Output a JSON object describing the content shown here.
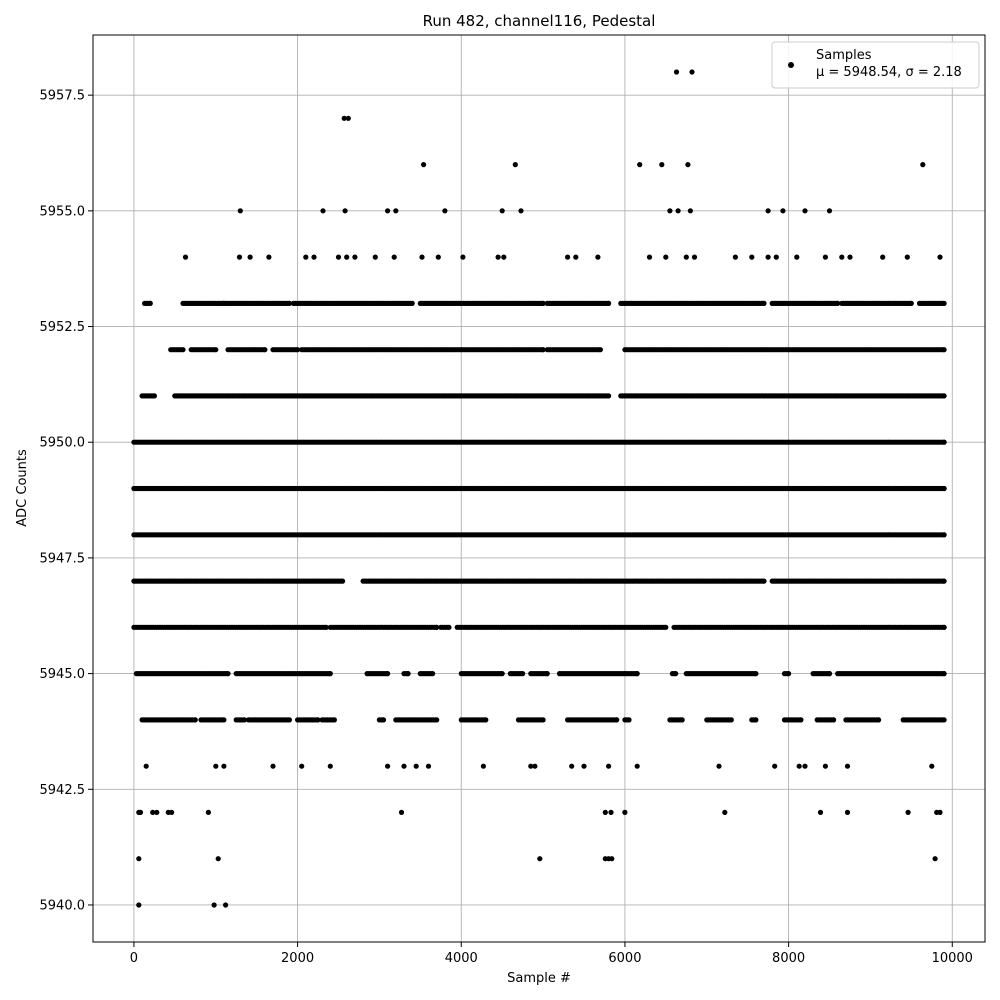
{
  "chart_data": {
    "type": "scatter",
    "title": "Run 482, channel116, Pedestal",
    "xlabel": "Sample #",
    "ylabel": "ADC Counts",
    "xlim": [
      -500,
      10400
    ],
    "ylim": [
      5939.2,
      5958.8
    ],
    "xticks": [
      0,
      2000,
      4000,
      6000,
      8000,
      10000
    ],
    "xtick_labels": [
      "0",
      "2000",
      "4000",
      "6000",
      "8000",
      "10000"
    ],
    "yticks": [
      5940.0,
      5942.5,
      5945.0,
      5947.5,
      5950.0,
      5952.5,
      5955.0,
      5957.5
    ],
    "ytick_labels": [
      "5940.0",
      "5942.5",
      "5945.0",
      "5947.5",
      "5950.0",
      "5952.5",
      "5955.0",
      "5957.5"
    ],
    "grid": true,
    "legend_position": "top-right",
    "series": [
      {
        "name": "Samples",
        "stats_label": "μ = 5948.54, σ = 2.18",
        "color": "#000000",
        "marker": "circle",
        "n_samples": 10000,
        "sample_range": [
          0,
          9900
        ],
        "points": [
          [
            60,
            5940
          ],
          [
            980,
            5940
          ],
          [
            1120,
            5940
          ],
          [
            60,
            5941
          ],
          [
            1030,
            5941
          ],
          [
            4960,
            5941
          ],
          [
            5760,
            5941
          ],
          [
            5800,
            5941
          ],
          [
            5840,
            5941
          ],
          [
            9790,
            5941
          ],
          [
            60,
            5942
          ],
          [
            80,
            5942
          ],
          [
            230,
            5942
          ],
          [
            280,
            5942
          ],
          [
            420,
            5942
          ],
          [
            460,
            5942
          ],
          [
            910,
            5942
          ],
          [
            3270,
            5942
          ],
          [
            5760,
            5942
          ],
          [
            5830,
            5942
          ],
          [
            6000,
            5942
          ],
          [
            7220,
            5942
          ],
          [
            8390,
            5942
          ],
          [
            8720,
            5942
          ],
          [
            9460,
            5942
          ],
          [
            9810,
            5942
          ],
          [
            9850,
            5942
          ],
          [
            150,
            5943
          ],
          [
            1000,
            5943
          ],
          [
            1100,
            5943
          ],
          [
            1700,
            5943
          ],
          [
            2050,
            5943
          ],
          [
            2400,
            5943
          ],
          [
            3100,
            5943
          ],
          [
            3300,
            5943
          ],
          [
            3450,
            5943
          ],
          [
            3600,
            5943
          ],
          [
            4270,
            5943
          ],
          [
            4850,
            5943
          ],
          [
            4900,
            5943
          ],
          [
            5350,
            5943
          ],
          [
            5500,
            5943
          ],
          [
            5800,
            5943
          ],
          [
            6150,
            5943
          ],
          [
            7150,
            5943
          ],
          [
            7830,
            5943
          ],
          [
            8130,
            5943
          ],
          [
            8200,
            5943
          ],
          [
            8450,
            5943
          ],
          [
            8720,
            5943
          ],
          [
            9750,
            5943
          ],
          [
            630,
            5954
          ],
          [
            1290,
            5954
          ],
          [
            1420,
            5954
          ],
          [
            1650,
            5954
          ],
          [
            2100,
            5954
          ],
          [
            2200,
            5954
          ],
          [
            2500,
            5954
          ],
          [
            2600,
            5954
          ],
          [
            2700,
            5954
          ],
          [
            2950,
            5954
          ],
          [
            3180,
            5954
          ],
          [
            3520,
            5954
          ],
          [
            3720,
            5954
          ],
          [
            4020,
            5954
          ],
          [
            4450,
            5954
          ],
          [
            4520,
            5954
          ],
          [
            5300,
            5954
          ],
          [
            5400,
            5954
          ],
          [
            5670,
            5954
          ],
          [
            6300,
            5954
          ],
          [
            6500,
            5954
          ],
          [
            6750,
            5954
          ],
          [
            6850,
            5954
          ],
          [
            7350,
            5954
          ],
          [
            7550,
            5954
          ],
          [
            7750,
            5954
          ],
          [
            7850,
            5954
          ],
          [
            8100,
            5954
          ],
          [
            8450,
            5954
          ],
          [
            8650,
            5954
          ],
          [
            8750,
            5954
          ],
          [
            9150,
            5954
          ],
          [
            9450,
            5954
          ],
          [
            9850,
            5954
          ],
          [
            1300,
            5955
          ],
          [
            2310,
            5955
          ],
          [
            2580,
            5955
          ],
          [
            3100,
            5955
          ],
          [
            3200,
            5955
          ],
          [
            3800,
            5955
          ],
          [
            4500,
            5955
          ],
          [
            4730,
            5955
          ],
          [
            6550,
            5955
          ],
          [
            6650,
            5955
          ],
          [
            6800,
            5955
          ],
          [
            7750,
            5955
          ],
          [
            7930,
            5955
          ],
          [
            8200,
            5955
          ],
          [
            8500,
            5955
          ],
          [
            3540,
            5956
          ],
          [
            4660,
            5956
          ],
          [
            6180,
            5956
          ],
          [
            6450,
            5956
          ],
          [
            6770,
            5956
          ],
          [
            9640,
            5956
          ],
          [
            2570,
            5957
          ],
          [
            2620,
            5957
          ],
          [
            6630,
            5958
          ],
          [
            6820,
            5958
          ]
        ],
        "dense_bands": [
          {
            "y": 5944,
            "ranges": [
              [
                100,
                750
              ],
              [
                820,
                1100
              ],
              [
                1250,
                1350
              ],
              [
                1400,
                1900
              ],
              [
                2000,
                2250
              ],
              [
                2300,
                2450
              ],
              [
                3000,
                3050
              ],
              [
                3200,
                3700
              ],
              [
                4000,
                4300
              ],
              [
                4700,
                5000
              ],
              [
                5300,
                5900
              ],
              [
                6000,
                6050
              ],
              [
                6550,
                6700
              ],
              [
                7000,
                7300
              ],
              [
                7550,
                7600
              ],
              [
                7950,
                8150
              ],
              [
                8350,
                8550
              ],
              [
                8700,
                9100
              ],
              [
                9400,
                9900
              ]
            ]
          },
          {
            "y": 5945,
            "ranges": [
              [
                30,
                1150
              ],
              [
                1250,
                2400
              ],
              [
                2850,
                3100
              ],
              [
                3300,
                3350
              ],
              [
                3500,
                3650
              ],
              [
                4000,
                4500
              ],
              [
                4600,
                4750
              ],
              [
                4850,
                5050
              ],
              [
                5200,
                6150
              ],
              [
                6580,
                6620
              ],
              [
                6750,
                7600
              ],
              [
                7950,
                8000
              ],
              [
                8300,
                8500
              ],
              [
                8600,
                9900
              ]
            ]
          },
          {
            "y": 5946,
            "ranges": [
              [
                0,
                2350
              ],
              [
                2400,
                3700
              ],
              [
                3750,
                3850
              ],
              [
                3950,
                6500
              ],
              [
                6600,
                9900
              ]
            ]
          },
          {
            "y": 5947,
            "ranges": [
              [
                0,
                2550
              ],
              [
                2800,
                7700
              ],
              [
                7800,
                9900
              ]
            ]
          },
          {
            "y": 5948,
            "ranges": [
              [
                0,
                9900
              ]
            ]
          },
          {
            "y": 5949,
            "ranges": [
              [
                0,
                9900
              ]
            ]
          },
          {
            "y": 5950,
            "ranges": [
              [
                0,
                9900
              ]
            ]
          },
          {
            "y": 5951,
            "ranges": [
              [
                100,
                250
              ],
              [
                500,
                5800
              ],
              [
                5950,
                9900
              ]
            ]
          },
          {
            "y": 5952,
            "ranges": [
              [
                450,
                600
              ],
              [
                700,
                1000
              ],
              [
                1150,
                1600
              ],
              [
                1700,
                2000
              ],
              [
                2050,
                5000
              ],
              [
                5050,
                5700
              ],
              [
                6000,
                9900
              ]
            ]
          },
          {
            "y": 5953,
            "ranges": [
              [
                130,
                200
              ],
              [
                600,
                1100
              ],
              [
                1100,
                1900
              ],
              [
                1950,
                3400
              ],
              [
                3500,
                5000
              ],
              [
                5050,
                5800
              ],
              [
                5950,
                7700
              ],
              [
                7800,
                8600
              ],
              [
                8650,
                9500
              ],
              [
                9600,
                9900
              ]
            ]
          }
        ]
      }
    ]
  }
}
